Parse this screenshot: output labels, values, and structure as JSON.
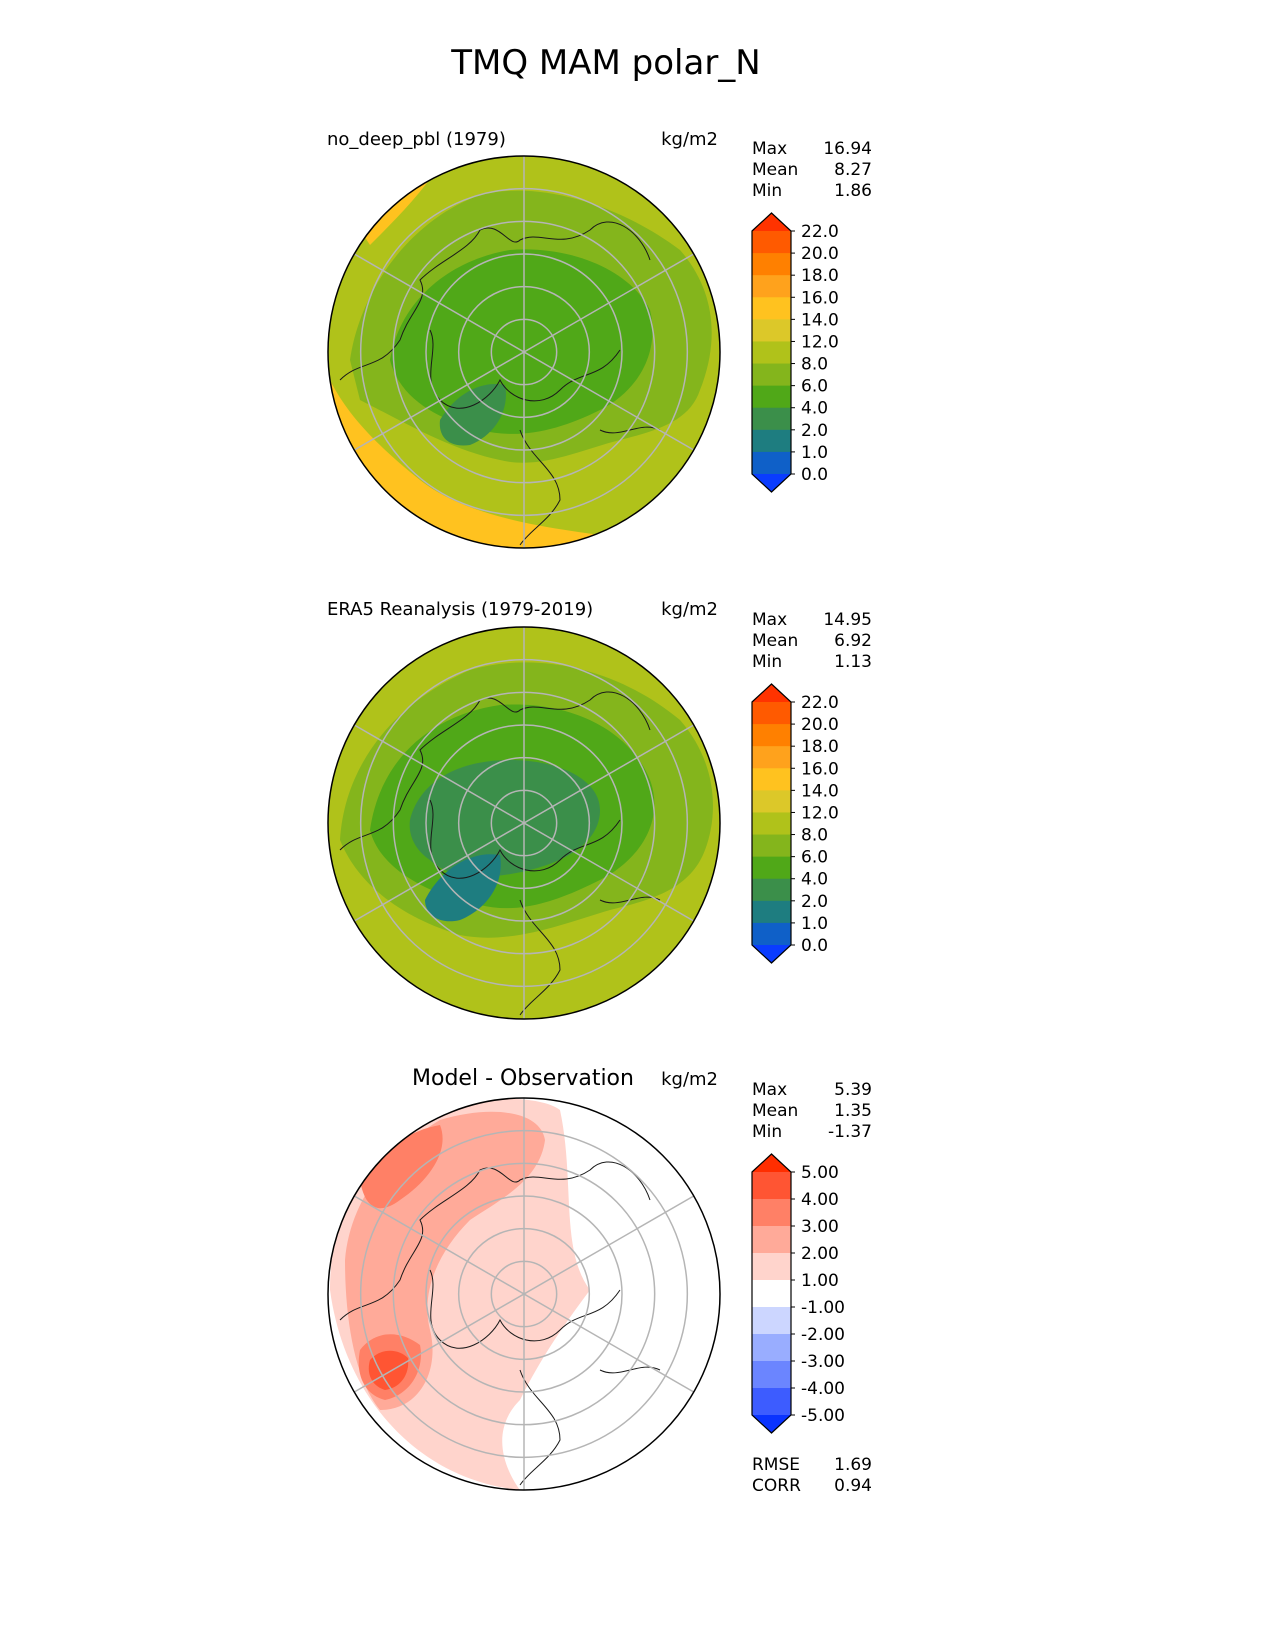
{
  "chart_data": {
    "type": "heatmap",
    "title": "TMQ MAM polar_N",
    "panels": [
      {
        "id": "test",
        "title": "no_deep_pbl (1979)",
        "units": "kg/m2",
        "stats": [
          {
            "label": "Max",
            "value": "16.94"
          },
          {
            "label": "Mean",
            "value": "8.27"
          },
          {
            "label": "Min",
            "value": "1.86"
          }
        ],
        "colorbar": {
          "levels": [
            "22.0",
            "20.0",
            "18.0",
            "16.0",
            "14.0",
            "12.0",
            "8.0",
            "6.0",
            "4.0",
            "2.0",
            "1.0",
            "0.0"
          ],
          "colors": [
            "#ff3300",
            "#ff5a00",
            "#ff8000",
            "#ffa21c",
            "#ffc21f",
            "#dcc829",
            "#b0c21a",
            "#84b51c",
            "#50a818",
            "#3b8f4a",
            "#1e7d80",
            "#0f60c8",
            "#0a3cff"
          ]
        }
      },
      {
        "id": "ref",
        "title": "ERA5 Reanalysis (1979-2019)",
        "units": "kg/m2",
        "stats": [
          {
            "label": "Max",
            "value": "14.95"
          },
          {
            "label": "Mean",
            "value": "6.92"
          },
          {
            "label": "Min",
            "value": "1.13"
          }
        ],
        "colorbar": {
          "levels": [
            "22.0",
            "20.0",
            "18.0",
            "16.0",
            "14.0",
            "12.0",
            "8.0",
            "6.0",
            "4.0",
            "2.0",
            "1.0",
            "0.0"
          ],
          "colors": [
            "#ff3300",
            "#ff5a00",
            "#ff8000",
            "#ffa21c",
            "#ffc21f",
            "#dcc829",
            "#b0c21a",
            "#84b51c",
            "#50a818",
            "#3b8f4a",
            "#1e7d80",
            "#0f60c8",
            "#0a3cff"
          ]
        }
      },
      {
        "id": "diff",
        "title": "Model - Observation",
        "units": "kg/m2",
        "stats": [
          {
            "label": "Max",
            "value": "5.39"
          },
          {
            "label": "Mean",
            "value": "1.35"
          },
          {
            "label": "Min",
            "value": "-1.37"
          }
        ],
        "extra_stats": [
          {
            "label": "RMSE",
            "value": "1.69"
          },
          {
            "label": "CORR",
            "value": "0.94"
          }
        ],
        "colorbar": {
          "levels": [
            "5.00",
            "4.00",
            "3.00",
            "2.00",
            "1.00",
            "-1.00",
            "-2.00",
            "-3.00",
            "-4.00",
            "-5.00"
          ],
          "colors": [
            "#ff2e00",
            "#ff5533",
            "#ff8066",
            "#ffaa99",
            "#ffd4cc",
            "#ffffff",
            "#ccd6ff",
            "#99adff",
            "#6b85ff",
            "#3d5cff",
            "#0a33ff"
          ]
        }
      }
    ]
  },
  "colors": {
    "test_map": [
      "#b0c21a",
      "#b0c21a",
      "#84b51c",
      "#50a818",
      "#3b8f4a",
      "#ffc21f"
    ],
    "ref_map": [
      "#b0c21a",
      "#b0c21a",
      "#84b51c",
      "#50a818",
      "#3b8f4a",
      "#1e7d80"
    ],
    "diff_map": [
      "#ffffff",
      "#ffd4cc",
      "#ffaa99",
      "#ff8066",
      "#ff5533"
    ],
    "grid": "#b5b5b5",
    "coast": "#1a1a1a"
  }
}
